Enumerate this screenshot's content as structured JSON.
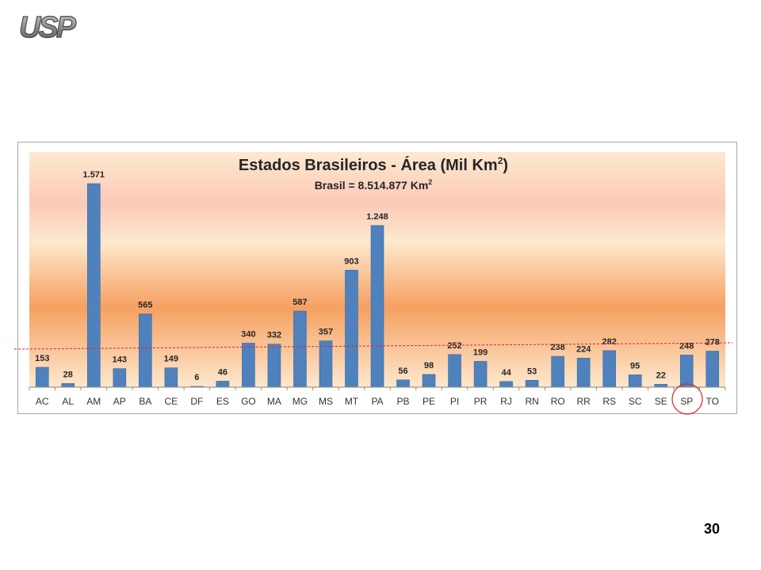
{
  "logo": {
    "text": "USP"
  },
  "page_number": "30",
  "colors": {
    "bar": "#4f81bd",
    "bar_edge": "#3a6aa3",
    "reference_line": "#d9262d",
    "highlight_circle": "#d9262d",
    "bg_top": "#fde9cf",
    "bg_band": "#fbc9b7",
    "bg_mid": "#f6a061"
  },
  "chart_data": {
    "type": "bar",
    "title": "Estados Brasileiros - Área (Mil Km",
    "title_superscript": "2",
    "title_close": ")",
    "subtitle": "Brasil = 8.514.877 Km",
    "subtitle_superscript": "2",
    "xlabel": "",
    "ylabel": "",
    "ylim": [
      0,
      1700
    ],
    "grid": false,
    "legend": "none",
    "categories": [
      "AC",
      "AL",
      "AM",
      "AP",
      "BA",
      "CE",
      "DF",
      "ES",
      "GO",
      "MA",
      "MG",
      "MS",
      "MT",
      "PA",
      "PB",
      "PE",
      "PI",
      "PR",
      "RJ",
      "RN",
      "RO",
      "RR",
      "RS",
      "SC",
      "SE",
      "SP",
      "TO"
    ],
    "values": [
      153,
      28,
      1571,
      143,
      565,
      149,
      6,
      46,
      340,
      332,
      587,
      357,
      903,
      1248,
      56,
      98,
      252,
      199,
      44,
      53,
      238,
      224,
      282,
      95,
      22,
      248,
      278
    ],
    "value_labels": [
      "153",
      "28",
      "1.571",
      "143",
      "565",
      "149",
      "6",
      "46",
      "340",
      "332",
      "587",
      "357",
      "903",
      "1.248",
      "56",
      "98",
      "252",
      "199",
      "44",
      "53",
      "238",
      "224",
      "282",
      "95",
      "22",
      "248",
      "278"
    ],
    "highlighted_category": "SP",
    "reference_line": "dashed"
  }
}
